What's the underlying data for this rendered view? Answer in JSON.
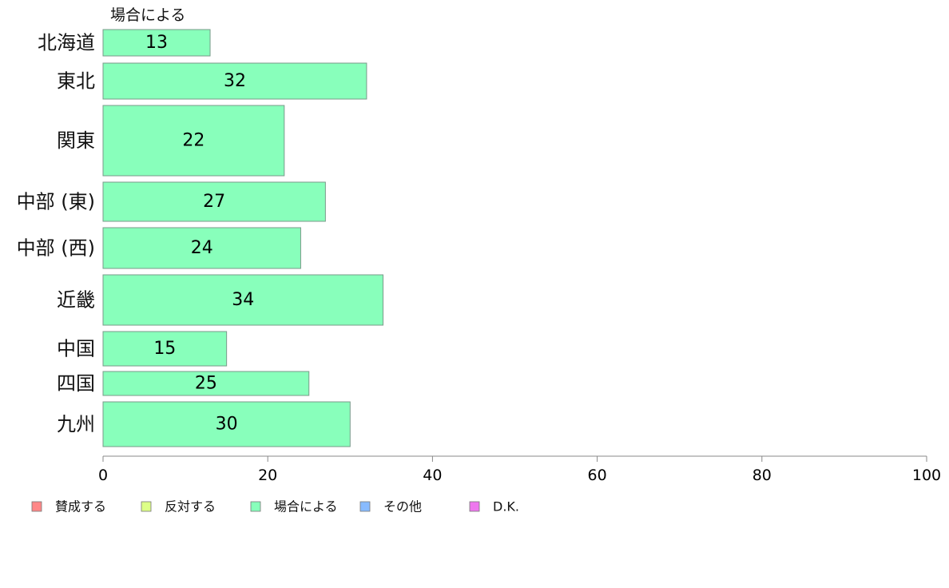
{
  "chart_data": {
    "type": "bar",
    "orientation": "horizontal",
    "series_title": "場合による",
    "categories": [
      "北海道",
      "東北",
      "関東",
      "中部 (東)",
      "中部 (西)",
      "近畿",
      "中国",
      "四国",
      "九州"
    ],
    "values": [
      13,
      32,
      22,
      27,
      24,
      34,
      15,
      25,
      30
    ],
    "xlim": [
      0,
      100
    ],
    "x_ticks": [
      0,
      20,
      40,
      60,
      80,
      100
    ],
    "bar_color": "#88ffbb",
    "bar_stroke": "#7a9a8a",
    "legend_position": "bottom-left",
    "legend": [
      {
        "label": "賛成する",
        "color": "#ff8888"
      },
      {
        "label": "反対する",
        "color": "#ddff88"
      },
      {
        "label": "場合による",
        "color": "#88ffbb"
      },
      {
        "label": "その他",
        "color": "#88bbff"
      },
      {
        "label": "D.K.",
        "color": "#ee77ee"
      }
    ]
  }
}
